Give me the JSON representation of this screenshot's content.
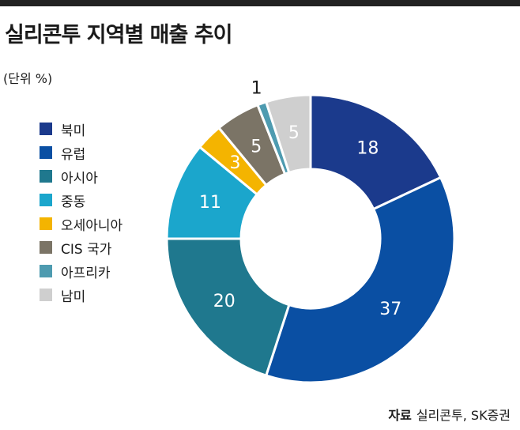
{
  "header": {
    "title": "실리콘투 지역별 매출 추이",
    "unit": "(단위 %)"
  },
  "source": {
    "label": "자료",
    "text": "실리콘투, SK증권"
  },
  "chart_data": {
    "type": "pie",
    "donut": true,
    "legend_position": "left",
    "start": "12 o'clock, clockwise",
    "slices": [
      {
        "label": "북미",
        "value": 18,
        "color": "#1b3a8c",
        "text_color": "#ffffff"
      },
      {
        "label": "유럽",
        "value": 37,
        "color": "#0a4fa3",
        "text_color": "#ffffff"
      },
      {
        "label": "아시아",
        "value": 20,
        "color": "#1f788e",
        "text_color": "#ffffff"
      },
      {
        "label": "중동",
        "value": 11,
        "color": "#1ba6cc",
        "text_color": "#ffffff"
      },
      {
        "label": "오세아니아",
        "value": 3,
        "color": "#f4b400",
        "text_color": "#ffffff"
      },
      {
        "label": "CIS 국가",
        "value": 5,
        "color": "#7b7466",
        "text_color": "#ffffff"
      },
      {
        "label": "아프리카",
        "value": 1,
        "color": "#4e9bb0",
        "text_color": "#1a1a1a"
      },
      {
        "label": "남미",
        "value": 5,
        "color": "#cfcfcf",
        "text_color": "#ffffff"
      }
    ]
  }
}
